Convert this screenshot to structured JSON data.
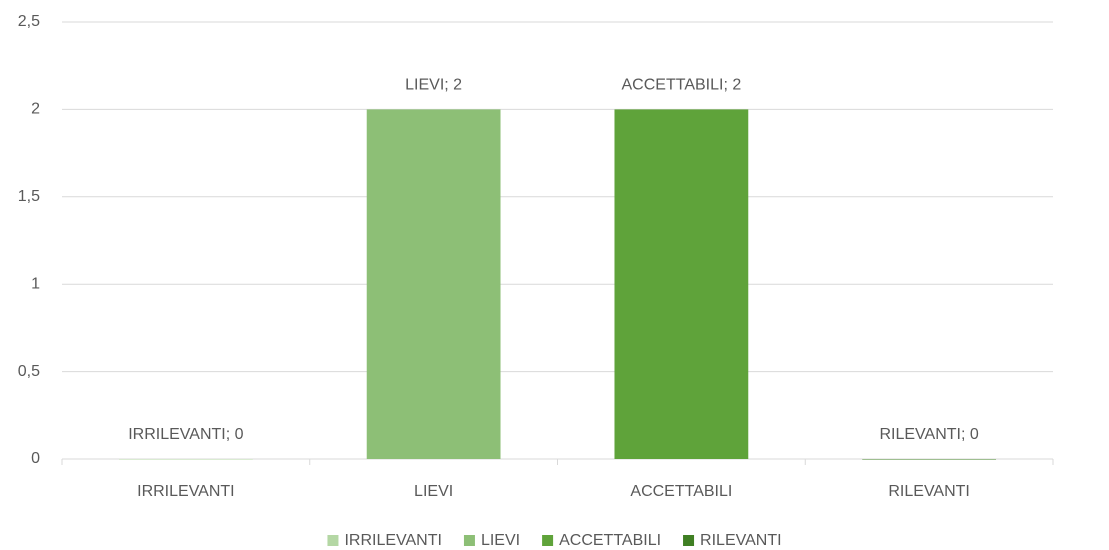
{
  "chart_data": {
    "type": "bar",
    "categories": [
      "IRRILEVANTI",
      "LIEVI",
      "ACCETTABILI",
      "RILEVANTI"
    ],
    "values": [
      0,
      2,
      2,
      0
    ],
    "value_labels": [
      "IRRILEVANTI; 0",
      "LIEVI; 2",
      "ACCETTABILI; 2",
      "RILEVANTI; 0"
    ],
    "colors": [
      "#b4d7a4",
      "#8dbf76",
      "#5fa33a",
      "#3f7f23"
    ],
    "ylim": [
      0,
      2.5
    ],
    "yticks": [
      0,
      {
        "value": 0.5,
        "label": "0,5"
      },
      1,
      {
        "value": 1.5,
        "label": "1,5"
      },
      2,
      {
        "value": 2.5,
        "label": "2,5"
      }
    ],
    "grid": true,
    "legend": "bottom"
  }
}
